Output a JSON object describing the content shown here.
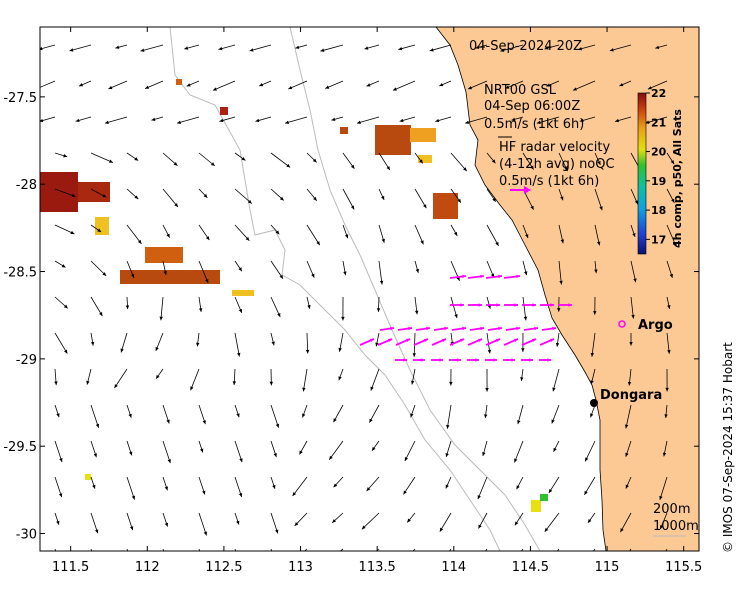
{
  "header": {
    "date_label": "04-Sep-2024 20Z"
  },
  "legend": {
    "line1": "NRT00 GSL",
    "line2": "04-Sep 06:00Z",
    "line3": "0.5m/s (1kt 6h)",
    "line4": "HF radar velocity",
    "line5": "(4-12h avg) noQC",
    "line6": "0.5m/s (1kt 6h)",
    "radar_color": "#ff00ff"
  },
  "colorbar": {
    "title": "4h comp, p50, All Sats",
    "ticks": [
      "22",
      "21",
      "20",
      "19",
      "18",
      "17"
    ],
    "range": [
      16.5,
      22
    ]
  },
  "places": [
    {
      "name": "Argo",
      "lon": 114.95,
      "lat": -28.83,
      "marker": "circle"
    },
    {
      "name": "Dongara",
      "lon": 114.93,
      "lat": -29.25,
      "marker": "dot"
    }
  ],
  "depth_labels": [
    "200m",
    "1000m"
  ],
  "axes": {
    "x_ticks": [
      "111.5",
      "112",
      "112.5",
      "113",
      "113.5",
      "114",
      "114.5",
      "115",
      "115.5"
    ],
    "x_values": [
      111.5,
      112,
      112.5,
      113,
      113.5,
      114,
      114.5,
      115,
      115.5
    ],
    "y_ticks": [
      "-27.5",
      "-28",
      "-28.5",
      "-29",
      "-29.5",
      "-30"
    ],
    "y_values": [
      -27.5,
      -28,
      -28.5,
      -29,
      -29.5,
      -30
    ],
    "xlim": [
      111.3,
      115.6
    ],
    "ylim": [
      -30.1,
      -27.1
    ]
  },
  "credit": "© IMOS 07-Sep-2024 15:37 Hobart",
  "colors": {
    "land": "#fcc995",
    "contour": "#bbbbbb",
    "arrow": "#000000"
  }
}
